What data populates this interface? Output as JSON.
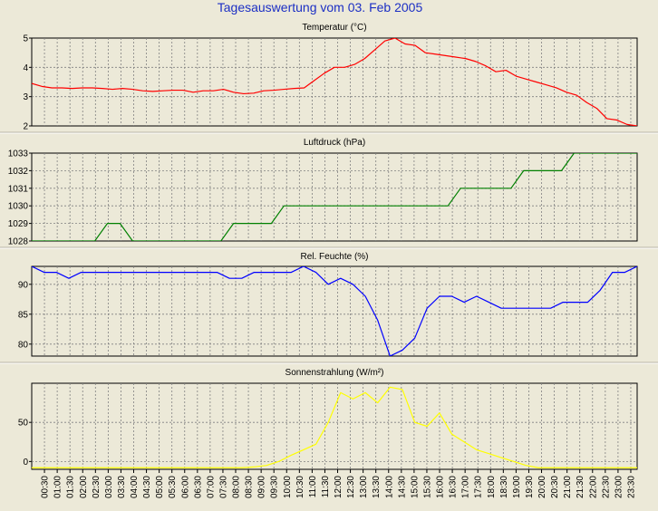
{
  "page": {
    "title": "Tagesauswertung vom 03. Feb 2005"
  },
  "time_labels": [
    "00:30",
    "01:00",
    "01:30",
    "02:00",
    "02:30",
    "03:00",
    "03:30",
    "04:00",
    "04:30",
    "05:00",
    "05:30",
    "06:00",
    "06:30",
    "07:00",
    "07:30",
    "08:00",
    "08:30",
    "09:00",
    "09:30",
    "10:00",
    "10:30",
    "11:00",
    "11:30",
    "12:00",
    "12:30",
    "13:00",
    "13:30",
    "14:00",
    "14:30",
    "15:00",
    "15:30",
    "16:00",
    "16:30",
    "17:00",
    "17:30",
    "18:00",
    "18:30",
    "19:00",
    "19:30",
    "20:00",
    "20:30",
    "21:00",
    "21:30",
    "22:00",
    "22:30",
    "23:00",
    "23:30"
  ],
  "chart_data": [
    {
      "type": "line",
      "title": "Temperatur (°C)",
      "ylim": [
        2,
        5
      ],
      "yticks": [
        "2",
        "3",
        "4",
        "5"
      ],
      "color": "#ff0000",
      "grid": true,
      "series": [
        {
          "values": [
            3.45,
            3.35,
            3.3,
            3.3,
            3.28,
            3.3,
            3.3,
            3.28,
            3.25,
            3.28,
            3.25,
            3.2,
            3.18,
            3.2,
            3.22,
            3.22,
            3.15,
            3.2,
            3.2,
            3.25,
            3.15,
            3.1,
            3.12,
            3.2,
            3.22,
            3.25,
            3.28,
            3.3,
            3.55,
            3.8,
            4.0,
            4.0,
            4.1,
            4.3,
            4.6,
            4.9,
            5.0,
            4.8,
            4.75,
            4.5,
            4.45,
            4.4,
            4.35,
            4.3,
            4.2,
            4.05,
            3.85,
            3.9,
            3.7,
            3.6,
            3.5,
            3.4,
            3.3,
            3.15,
            3.05,
            2.8,
            2.6,
            2.25,
            2.2,
            2.05,
            2.0
          ]
        }
      ]
    },
    {
      "type": "line",
      "title": "Luftdruck (hPa)",
      "ylim": [
        1028,
        1033
      ],
      "yticks": [
        "1028",
        "1029",
        "1030",
        "1031",
        "1032",
        "1033"
      ],
      "color": "#008000",
      "grid": true,
      "series": [
        {
          "values": [
            1028,
            1028,
            1028,
            1028,
            1028,
            1028,
            1029,
            1029,
            1028,
            1028,
            1028,
            1028,
            1028,
            1028,
            1028,
            1028,
            1029,
            1029,
            1029,
            1029,
            1030,
            1030,
            1030,
            1030,
            1030,
            1030,
            1030,
            1030,
            1030,
            1030,
            1030,
            1030,
            1030,
            1030,
            1031,
            1031,
            1031,
            1031,
            1031,
            1032,
            1032,
            1032,
            1032,
            1033,
            1033,
            1033,
            1033,
            1033,
            1033
          ]
        }
      ]
    },
    {
      "type": "line",
      "title": "Rel. Feuchte (%)",
      "ylim": [
        78,
        93
      ],
      "yticks": [
        "80",
        "85",
        "90"
      ],
      "color": "#0000ff",
      "grid": true,
      "series": [
        {
          "values": [
            93,
            92,
            92,
            91,
            92,
            92,
            92,
            92,
            92,
            92,
            92,
            92,
            92,
            92,
            92,
            92,
            91,
            91,
            92,
            92,
            92,
            92,
            93,
            92,
            90,
            91,
            90,
            88,
            84,
            78,
            79,
            81,
            86,
            88,
            88,
            87,
            88,
            87,
            86,
            86,
            86,
            86,
            86,
            87,
            87,
            87,
            89,
            92,
            92,
            93
          ]
        }
      ]
    },
    {
      "type": "line",
      "title": "Sonnenstrahlung (W/m²)",
      "ylim": [
        -10,
        100
      ],
      "yticks": [
        "0",
        "50"
      ],
      "color": "#ffff00",
      "grid": true,
      "series": [
        {
          "values": [
            -8,
            -8,
            -8,
            -8,
            -8,
            -8,
            -8,
            -8,
            -8,
            -8,
            -8,
            -8,
            -8,
            -8,
            -8,
            -8,
            -8,
            -8,
            -7,
            -5,
            0,
            8,
            15,
            22,
            50,
            88,
            80,
            88,
            75,
            95,
            92,
            50,
            45,
            62,
            35,
            25,
            15,
            10,
            5,
            0,
            -5,
            -8,
            -8,
            -8,
            -8,
            -8,
            -8,
            -8,
            -8,
            -8
          ]
        }
      ]
    }
  ]
}
